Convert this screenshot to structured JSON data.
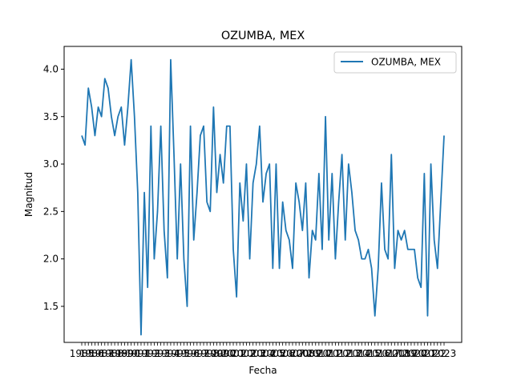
{
  "chart_data": {
    "type": "line",
    "title": "OZUMBA, MEX",
    "xlabel": "Fecha",
    "ylabel": "Magnitud",
    "ylim": [
      1.12,
      4.24
    ],
    "yticks": [
      1.5,
      2.0,
      2.5,
      3.0,
      3.5,
      4.0
    ],
    "ytick_labels": [
      "1.5",
      "2.0",
      "2.5",
      "3.0",
      "3.5",
      "4.0"
    ],
    "grid": false,
    "legend_position": "top-right",
    "color": "#1f77b4",
    "series": [
      {
        "name": "OZUMBA, MEX",
        "values": [
          3.3,
          3.2,
          3.8,
          3.6,
          3.3,
          3.6,
          3.5,
          3.9,
          3.8,
          3.5,
          3.3,
          3.5,
          3.6,
          3.2,
          3.6,
          4.1,
          3.5,
          2.7,
          1.2,
          2.7,
          1.7,
          3.4,
          2.0,
          2.5,
          3.4,
          2.3,
          1.8,
          4.1,
          3.1,
          2.0,
          3.0,
          2.0,
          1.5,
          3.4,
          2.2,
          2.7,
          3.3,
          3.4,
          2.6,
          2.5,
          3.6,
          2.7,
          3.1,
          2.8,
          3.4,
          3.4,
          2.1,
          1.6,
          2.8,
          2.4,
          3.0,
          2.0,
          2.8,
          3.0,
          3.4,
          2.6,
          2.9,
          3.0,
          1.9,
          3.0,
          1.9,
          2.6,
          2.3,
          2.2,
          1.9,
          2.8,
          2.6,
          2.3,
          2.8,
          1.8,
          2.3,
          2.2,
          2.9,
          2.1,
          3.5,
          2.2,
          2.9,
          2.0,
          2.6,
          3.1,
          2.2,
          3.0,
          2.7,
          2.3,
          2.2,
          2.0,
          2.0,
          2.1,
          1.9,
          1.4,
          1.9,
          2.8,
          2.1,
          2.0,
          3.1,
          1.9,
          2.3,
          2.2,
          2.3,
          2.1,
          2.1,
          2.1,
          1.8,
          1.7,
          2.9,
          1.4,
          3.0,
          2.2,
          1.9,
          2.6,
          3.3
        ]
      }
    ],
    "x_tick_labels": [
      "1985",
      "1986",
      "1987",
      "1988",
      "1989",
      "1990",
      "1991",
      "1992",
      "1993",
      "1994",
      "1995",
      "1996",
      "1997",
      "1998",
      "1999",
      "2000",
      "2001",
      "2002",
      "2003",
      "2004",
      "2005",
      "2006",
      "2007",
      "2008",
      "2009",
      "2010",
      "2011",
      "2012",
      "2013",
      "2014",
      "2015",
      "2016",
      "2017",
      "2018",
      "2019",
      "2020",
      "2021",
      "2022",
      "2023"
    ]
  }
}
